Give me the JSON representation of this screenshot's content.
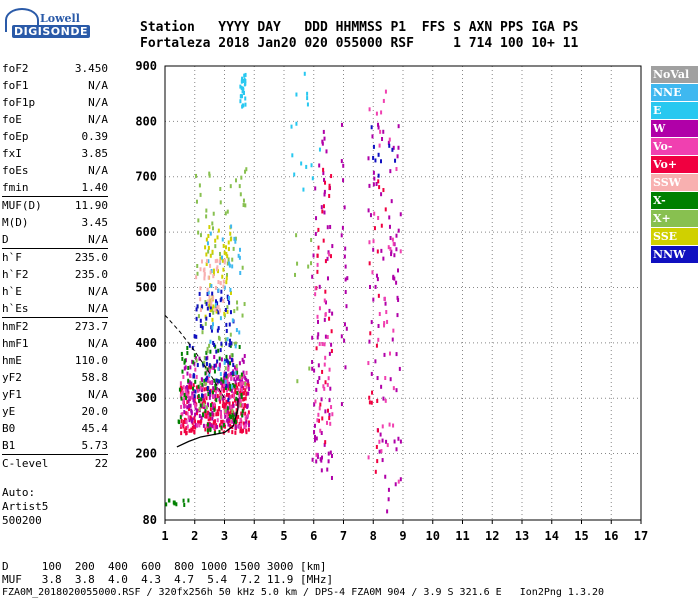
{
  "logo": {
    "line1": "Lowell",
    "line2": "DIGISONDE"
  },
  "header": {
    "row1": "Station   YYYY DAY   DDD HHMMSS P1  FFS S AXN PPS IGA PS",
    "row2": "Fortaleza 2018 Jan20 020 055000 RSF     1 714 100 10+ 11"
  },
  "params": [
    {
      "name": "foF2",
      "value": "3.450",
      "sep": false
    },
    {
      "name": "foF1",
      "value": "N/A",
      "sep": false
    },
    {
      "name": "foF1p",
      "value": "N/A",
      "sep": false
    },
    {
      "name": "foE",
      "value": "N/A",
      "sep": false
    },
    {
      "name": "foEp",
      "value": "0.39",
      "sep": false
    },
    {
      "name": "fxI",
      "value": "3.85",
      "sep": false
    },
    {
      "name": "foEs",
      "value": "N/A",
      "sep": false
    },
    {
      "name": "fmin",
      "value": "1.40",
      "sep": false
    },
    {
      "name": "MUF(D)",
      "value": "11.90",
      "sep": true
    },
    {
      "name": "M(D)",
      "value": "3.45",
      "sep": false
    },
    {
      "name": "D",
      "value": "N/A",
      "sep": false
    },
    {
      "name": "h`F",
      "value": "235.0",
      "sep": true
    },
    {
      "name": "h`F2",
      "value": "235.0",
      "sep": false
    },
    {
      "name": "h`E",
      "value": "N/A",
      "sep": false
    },
    {
      "name": "h`Es",
      "value": "N/A",
      "sep": false
    },
    {
      "name": "hmF2",
      "value": "273.7",
      "sep": true
    },
    {
      "name": "hmF1",
      "value": "N/A",
      "sep": false
    },
    {
      "name": "hmE",
      "value": "110.0",
      "sep": false
    },
    {
      "name": "yF2",
      "value": "58.8",
      "sep": false
    },
    {
      "name": "yF1",
      "value": "N/A",
      "sep": false
    },
    {
      "name": "yE",
      "value": "20.0",
      "sep": false
    },
    {
      "name": "B0",
      "value": "45.4",
      "sep": false
    },
    {
      "name": "B1",
      "value": "5.73",
      "sep": false
    },
    {
      "name": "C-level",
      "value": "22",
      "sep": true
    }
  ],
  "auto": {
    "line1": "Auto:",
    "line2": "Artist5",
    "line3": "500200"
  },
  "footer": {
    "row1": "D     100  200  400  600  800 1000 1500 3000 [km]",
    "row2": "MUF   3.8  3.8  4.0  4.3  4.7  5.4  7.2 11.9 [MHz]",
    "row3": "FZA0M_2018020055000.RSF / 320fx256h 50 kHz 5.0 km / DPS-4 FZA0M 904 / 3.9 S 321.6 E   Ion2Png 1.3.20"
  },
  "legend": [
    {
      "label": "NoVal",
      "color": "#a0a0a0"
    },
    {
      "label": "NNE",
      "color": "#3fb8f0"
    },
    {
      "label": "E",
      "color": "#28c8f0"
    },
    {
      "label": "W",
      "color": "#b000a8"
    },
    {
      "label": "Vo-",
      "color": "#f040b0"
    },
    {
      "label": "Vo+",
      "color": "#f00040"
    },
    {
      "label": "SSW",
      "color": "#f8b0b0"
    },
    {
      "label": "X-",
      "color": "#008000"
    },
    {
      "label": "X+",
      "color": "#88c050"
    },
    {
      "label": "SSE",
      "color": "#d0d000"
    },
    {
      "label": "NNW",
      "color": "#1010c0"
    }
  ],
  "chart_data": {
    "type": "scatter",
    "xlim": [
      1,
      17
    ],
    "ylim": [
      80,
      900
    ],
    "x_ticks": [
      1,
      2,
      3,
      4,
      5,
      6,
      7,
      8,
      9,
      10,
      11,
      12,
      13,
      14,
      15,
      16,
      17
    ],
    "y_ticks": [
      80,
      200,
      300,
      400,
      500,
      600,
      700,
      800,
      900
    ],
    "grid": true,
    "legend_placement": "right",
    "trace_points": [
      [
        1.4,
        212
      ],
      [
        1.8,
        222
      ],
      [
        2.2,
        230
      ],
      [
        2.6,
        234
      ],
      [
        3.0,
        238
      ],
      [
        3.3,
        250
      ],
      [
        3.45,
        280
      ],
      [
        3.45,
        300
      ]
    ],
    "dashed_points": [
      [
        1.0,
        450
      ],
      [
        1.5,
        420
      ],
      [
        2.0,
        385
      ],
      [
        2.5,
        345
      ],
      [
        3.0,
        300
      ]
    ],
    "clusters": [
      {
        "series": "Vo+",
        "x": [
          1.5,
          3.8
        ],
        "y": [
          240,
          330
        ],
        "n": 260
      },
      {
        "series": "W",
        "x": [
          1.6,
          3.8
        ],
        "y": [
          250,
          380
        ],
        "n": 160
      },
      {
        "series": "Vo-",
        "x": [
          1.5,
          3.8
        ],
        "y": [
          250,
          360
        ],
        "n": 120
      },
      {
        "series": "X-",
        "x": [
          1.4,
          3.6
        ],
        "y": [
          240,
          400
        ],
        "n": 90
      },
      {
        "series": "X+",
        "x": [
          2.0,
          3.7
        ],
        "y": [
          280,
          720
        ],
        "n": 90
      },
      {
        "series": "SSE",
        "x": [
          2.3,
          3.2
        ],
        "y": [
          430,
          620
        ],
        "n": 50
      },
      {
        "series": "NNW",
        "x": [
          1.8,
          3.3
        ],
        "y": [
          300,
          500
        ],
        "n": 80
      },
      {
        "series": "NNE",
        "x": [
          2.4,
          3.5
        ],
        "y": [
          300,
          620
        ],
        "n": 40
      },
      {
        "series": "E",
        "x": [
          3.5,
          3.7
        ],
        "y": [
          830,
          890
        ],
        "n": 25
      },
      {
        "series": "SSW",
        "x": [
          2.0,
          3.0
        ],
        "y": [
          460,
          560
        ],
        "n": 40
      },
      {
        "series": "X-",
        "x": [
          1.0,
          1.8
        ],
        "y": [
          110,
          120
        ],
        "n": 10
      },
      {
        "series": "W",
        "x": [
          5.9,
          6.6
        ],
        "y": [
          140,
          800
        ],
        "n": 70
      },
      {
        "series": "Vo+",
        "x": [
          6.0,
          6.6
        ],
        "y": [
          200,
          720
        ],
        "n": 30
      },
      {
        "series": "Vo-",
        "x": [
          6.0,
          6.6
        ],
        "y": [
          200,
          600
        ],
        "n": 30
      },
      {
        "series": "E",
        "x": [
          5.2,
          6.2
        ],
        "y": [
          660,
          900
        ],
        "n": 15
      },
      {
        "series": "W",
        "x": [
          6.9,
          7.1
        ],
        "y": [
          280,
          800
        ],
        "n": 20
      },
      {
        "series": "W",
        "x": [
          7.8,
          8.9
        ],
        "y": [
          80,
          800
        ],
        "n": 80
      },
      {
        "series": "Vo-",
        "x": [
          7.8,
          8.9
        ],
        "y": [
          150,
          900
        ],
        "n": 40
      },
      {
        "series": "Vo+",
        "x": [
          7.8,
          8.6
        ],
        "y": [
          150,
          700
        ],
        "n": 20
      },
      {
        "series": "NNW",
        "x": [
          7.9,
          8.7
        ],
        "y": [
          700,
          800
        ],
        "n": 10
      },
      {
        "series": "X+",
        "x": [
          5.3,
          6.2
        ],
        "y": [
          300,
          700
        ],
        "n": 8
      }
    ]
  }
}
